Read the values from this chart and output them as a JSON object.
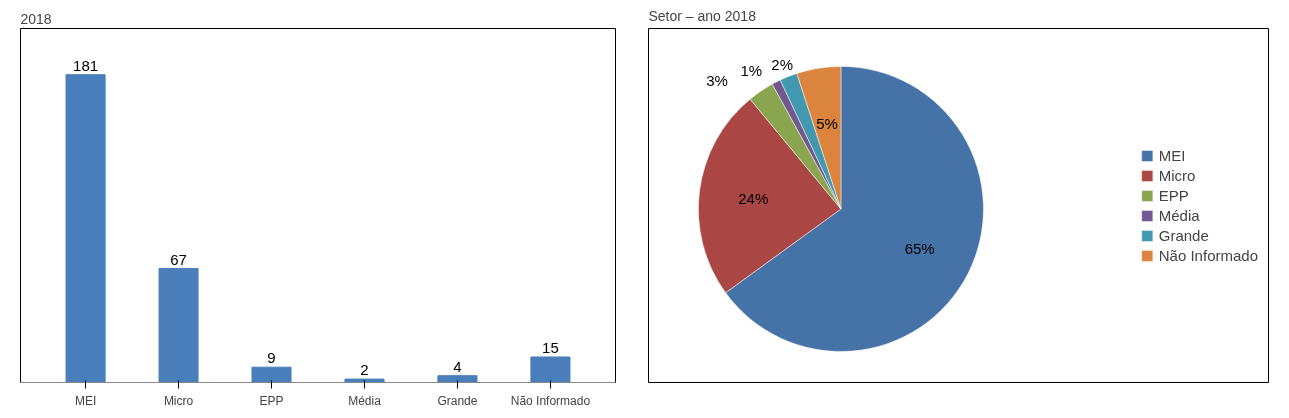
{
  "chart_data": [
    {
      "type": "bar",
      "title": "2018",
      "categories": [
        "MEI",
        "Micro",
        "EPP",
        "Média",
        "Grande",
        "Não Informado"
      ],
      "values": [
        181,
        67,
        9,
        2,
        4,
        15
      ],
      "color": "#4a7ebb",
      "data_labels": true
    },
    {
      "type": "pie",
      "title": "Setor – ano 2018",
      "categories": [
        "MEI",
        "Micro",
        "EPP",
        "Média",
        "Grande",
        "Não Informado"
      ],
      "values": [
        65,
        24,
        3,
        1,
        2,
        5
      ],
      "colors": [
        "#4572a7",
        "#aa4643",
        "#89a54e",
        "#71588f",
        "#4198af",
        "#db843d"
      ],
      "value_labels": [
        "65%",
        "24%",
        "3%",
        "1%",
        "2%",
        "5%"
      ],
      "legend": "right"
    }
  ]
}
